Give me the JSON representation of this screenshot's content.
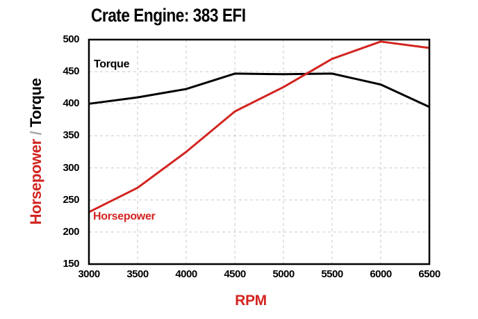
{
  "title": "Crate Engine: 383 EFI",
  "colors": {
    "accent_red": "#d22420",
    "black": "#000000",
    "grid": "#c9c9c9",
    "separator_gray": "#a8a8a8",
    "background": "#ffffff"
  },
  "axis": {
    "x_title": "RPM",
    "y_title_horsepower": "Horsepower",
    "y_title_separator": " / ",
    "y_title_torque": "Torque",
    "x_ticks": [
      3000,
      3500,
      4000,
      4500,
      5000,
      5500,
      6000,
      6500
    ],
    "y_ticks": [
      150,
      200,
      250,
      300,
      350,
      400,
      450,
      500
    ]
  },
  "inline_labels": {
    "torque": "Torque",
    "horsepower": "Horsepower"
  },
  "chart_data": {
    "type": "line",
    "title": "Crate Engine: 383 EFI",
    "xlabel": "RPM",
    "ylabel": "Horsepower / Torque",
    "x": [
      3000,
      3500,
      4000,
      4500,
      5000,
      5500,
      6000,
      6500
    ],
    "series": [
      {
        "name": "Torque",
        "color": "#000000",
        "values": [
          400,
          410,
          423,
          447,
          446,
          447,
          430,
          395
        ]
      },
      {
        "name": "Horsepower",
        "color": "#d22420",
        "values": [
          231,
          269,
          325,
          388,
          426,
          470,
          497,
          487
        ]
      }
    ],
    "xlim": [
      3000,
      6500
    ],
    "ylim": [
      150,
      500
    ],
    "grid": true,
    "gridline_style": "dashed",
    "legend_position": "inline-labels"
  }
}
